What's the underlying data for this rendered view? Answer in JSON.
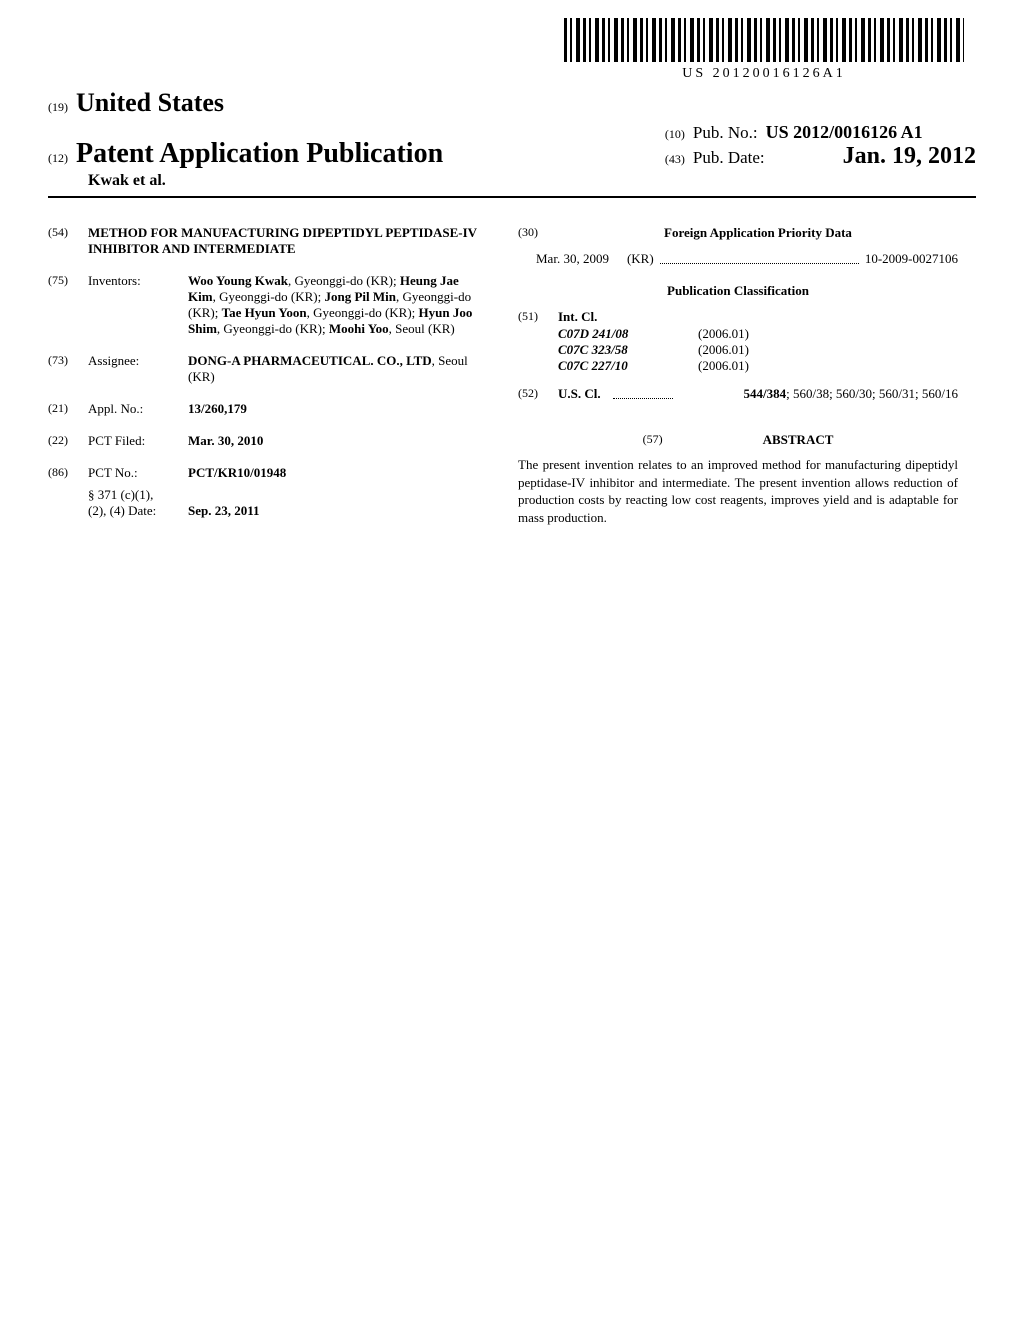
{
  "barcode_text": "US 20120016126A1",
  "header": {
    "field19_num": "(19)",
    "country": "United States",
    "field12_num": "(12)",
    "pub_type": "Patent Application Publication",
    "authors_short": "Kwak et al.",
    "field10_num": "(10)",
    "pub_no_label": "Pub. No.:",
    "pub_no": "US 2012/0016126 A1",
    "field43_num": "(43)",
    "pub_date_label": "Pub. Date:",
    "pub_date": "Jan. 19, 2012"
  },
  "left": {
    "title": {
      "num": "(54)",
      "text": "METHOD FOR MANUFACTURING DIPEPTIDYL PEPTIDASE-IV INHIBITOR AND INTERMEDIATE"
    },
    "inventors": {
      "num": "(75)",
      "label": "Inventors:",
      "text": "<strong>Woo Young Kwak</strong>, Gyeonggi-do (KR); <strong>Heung Jae Kim</strong>, Gyeonggi-do (KR); <strong>Jong Pil Min</strong>, Gyeonggi-do (KR); <strong>Tae Hyun Yoon</strong>, Gyeonggi-do (KR); <strong>Hyun Joo Shim</strong>, Gyeonggi-do (KR); <strong>Moohi Yoo</strong>, Seoul (KR)"
    },
    "assignee": {
      "num": "(73)",
      "label": "Assignee:",
      "text": "<strong>DONG-A PHARMACEUTICAL. CO., LTD</strong>, Seoul (KR)"
    },
    "appl_no": {
      "num": "(21)",
      "label": "Appl. No.:",
      "text": "<strong>13/260,179</strong>"
    },
    "pct_filed": {
      "num": "(22)",
      "label": "PCT Filed:",
      "text": "<strong>Mar. 30, 2010</strong>"
    },
    "pct_no": {
      "num": "(86)",
      "label": "PCT No.:",
      "text": "<strong>PCT/KR10/01948</strong>",
      "sub_label": "§ 371 (c)(1),\n(2), (4) Date:",
      "sub_text": "<strong>Sep. 23, 2011</strong>"
    }
  },
  "right": {
    "foreign_header_num": "(30)",
    "foreign_header": "Foreign Application Priority Data",
    "foreign_date": "Mar. 30, 2009",
    "foreign_country": "(KR)",
    "foreign_appno": "10-2009-0027106",
    "pubclass_header": "Publication Classification",
    "int_cl": {
      "num": "(51)",
      "label": "Int. Cl.",
      "rows": [
        {
          "code": "C07D 241/08",
          "ver": "(2006.01)"
        },
        {
          "code": "C07C 323/58",
          "ver": "(2006.01)"
        },
        {
          "code": "C07C 227/10",
          "ver": "(2006.01)"
        }
      ]
    },
    "us_cl": {
      "num": "(52)",
      "label": "U.S. Cl.",
      "text": "<strong>544/384</strong>; 560/38; 560/30; 560/31; 560/16"
    },
    "abstract_num": "(57)",
    "abstract_label": "ABSTRACT",
    "abstract_text": "The present invention relates to an improved method for manufacturing dipeptidyl peptidase-IV inhibitor and intermediate. The present invention allows reduction of production costs by reacting low cost reagents, improves yield and is adaptable for mass production."
  }
}
